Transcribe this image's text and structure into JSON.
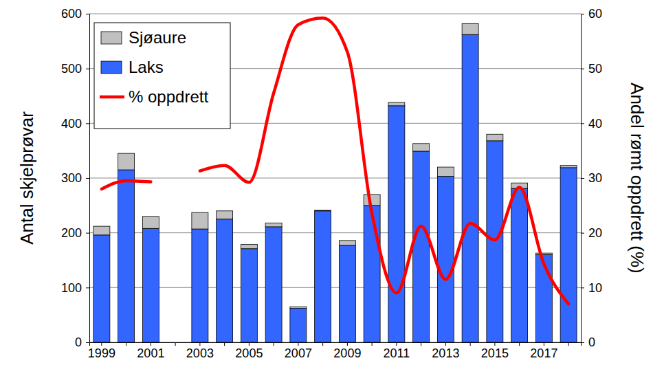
{
  "chart_data": {
    "type": "bar",
    "y_label": "Antal skjelprøvar",
    "y2_label": "Andel rømt oppdrett (%)",
    "categories": [
      "1999",
      null,
      "2001",
      null,
      "2003",
      null,
      "2005",
      null,
      "2007",
      null,
      "2009",
      null,
      "2011",
      null,
      "2013",
      null,
      "2015",
      null,
      "2017",
      null
    ],
    "series": [
      {
        "name": "Sjøaure",
        "color": "#c0c0c0",
        "type": "bar",
        "values": [
          16,
          30,
          22,
          null,
          30,
          15,
          8,
          7,
          3,
          1,
          9,
          20,
          6,
          14,
          17,
          20,
          12,
          10,
          3,
          4
        ]
      },
      {
        "name": "Laks",
        "color": "#3366ff",
        "type": "bar",
        "values": [
          196,
          315,
          208,
          null,
          207,
          225,
          171,
          211,
          62,
          240,
          177,
          250,
          432,
          349,
          303,
          562,
          368,
          281,
          160,
          319
        ]
      },
      {
        "name": "% oppdrett",
        "color": "#ff0000",
        "type": "line",
        "axis": "y2",
        "values": [
          28,
          29.5,
          29.3,
          null,
          31.3,
          32.3,
          29.2,
          45.5,
          58,
          59.2,
          53,
          23.5,
          9,
          21.2,
          11.5,
          21.7,
          18.7,
          28.3,
          14.3,
          7
        ]
      }
    ],
    "stacked": true,
    "ylim": [
      0,
      600
    ],
    "yticks": [
      0,
      100,
      200,
      300,
      400,
      500,
      600
    ],
    "y2lim": [
      0,
      60
    ],
    "y2ticks": [
      0,
      10,
      20,
      30,
      40,
      50,
      60
    ],
    "grid": true,
    "legend": "upper left"
  }
}
